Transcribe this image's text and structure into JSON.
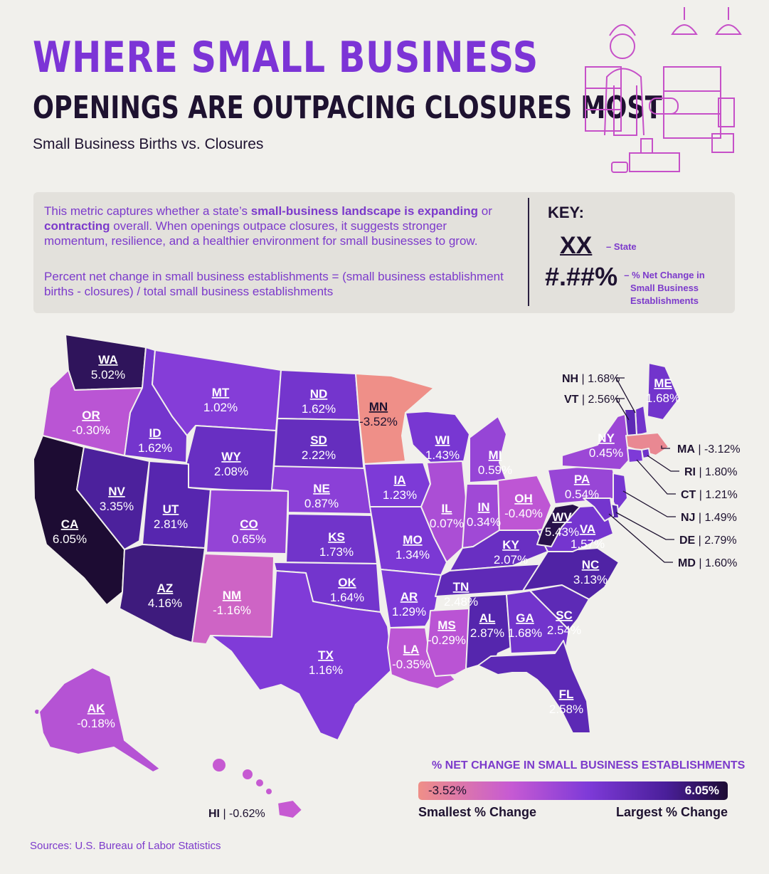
{
  "header": {
    "title_line1": "WHERE SMALL BUSINESS",
    "title_line2": "OPENINGS ARE OUTPACING CLOSURES MOST",
    "subtitle": "Small Business Births vs. Closures"
  },
  "info": {
    "desc_pre": "This metric captures whether a state’s ",
    "desc_bold1": "small-business landscape is expanding",
    "desc_mid": " or ",
    "desc_bold2": "contracting",
    "desc_post": " overall. When openings outpace closures, it suggests stronger momentum, resilience, and a healthier environment for small businesses to grow.",
    "formula": "Percent net change in small business establishments = (small business establishment births - closures) / total small business establishments"
  },
  "key": {
    "title": "KEY:",
    "state_sample": "XX",
    "state_label": "– State",
    "pct_sample": "#.##%",
    "pct_label": "– % Net Change in Small Business Establishments"
  },
  "legend": {
    "title": "% NET CHANGE IN SMALL BUSINESS ESTABLISHMENTS",
    "min_value": "-3.52%",
    "max_value": "6.05%",
    "min_label": "Smallest % Change",
    "max_label": "Largest % Change"
  },
  "colors": {
    "background": "#f1f0ec",
    "accent_purple": "#7c34d6",
    "dark_text": "#1e1230",
    "min_color": "#ef8f88",
    "mid_color": "#c65ad3",
    "max_color": "#1d0c33"
  },
  "source": "Sources: U.S. Bureau of Labor Statistics",
  "states": [
    {
      "abbr": "WA",
      "value": "5.02%"
    },
    {
      "abbr": "OR",
      "value": "-0.30%"
    },
    {
      "abbr": "CA",
      "value": "6.05%"
    },
    {
      "abbr": "ID",
      "value": "1.62%"
    },
    {
      "abbr": "NV",
      "value": "3.35%"
    },
    {
      "abbr": "MT",
      "value": "1.02%"
    },
    {
      "abbr": "WY",
      "value": "2.08%"
    },
    {
      "abbr": "UT",
      "value": "2.81%"
    },
    {
      "abbr": "AZ",
      "value": "4.16%"
    },
    {
      "abbr": "CO",
      "value": "0.65%"
    },
    {
      "abbr": "NM",
      "value": "-1.16%"
    },
    {
      "abbr": "ND",
      "value": "1.62%"
    },
    {
      "abbr": "SD",
      "value": "2.22%"
    },
    {
      "abbr": "NE",
      "value": "0.87%"
    },
    {
      "abbr": "KS",
      "value": "1.73%"
    },
    {
      "abbr": "OK",
      "value": "1.64%"
    },
    {
      "abbr": "TX",
      "value": "1.16%"
    },
    {
      "abbr": "MN",
      "value": "-3.52%"
    },
    {
      "abbr": "IA",
      "value": "1.23%"
    },
    {
      "abbr": "MO",
      "value": "1.34%"
    },
    {
      "abbr": "AR",
      "value": "1.29%"
    },
    {
      "abbr": "LA",
      "value": "-0.35%"
    },
    {
      "abbr": "WI",
      "value": "1.43%"
    },
    {
      "abbr": "IL",
      "value": "0.07%"
    },
    {
      "abbr": "MS",
      "value": "-0.29%"
    },
    {
      "abbr": "MI",
      "value": "0.59%"
    },
    {
      "abbr": "IN",
      "value": "0.34%"
    },
    {
      "abbr": "KY",
      "value": "2.07%"
    },
    {
      "abbr": "TN",
      "value": "2.48%"
    },
    {
      "abbr": "AL",
      "value": "2.87%"
    },
    {
      "abbr": "OH",
      "value": "-0.40%"
    },
    {
      "abbr": "GA",
      "value": "1.68%"
    },
    {
      "abbr": "FL",
      "value": "2.58%"
    },
    {
      "abbr": "SC",
      "value": "2.54%"
    },
    {
      "abbr": "NC",
      "value": "3.13%"
    },
    {
      "abbr": "VA",
      "value": "1.57%"
    },
    {
      "abbr": "WV",
      "value": "5.43%"
    },
    {
      "abbr": "PA",
      "value": "0.54%"
    },
    {
      "abbr": "NY",
      "value": "0.45%"
    },
    {
      "abbr": "ME",
      "value": "1.68%"
    },
    {
      "abbr": "AK",
      "value": "-0.18%"
    }
  ],
  "callouts": [
    {
      "abbr": "NH",
      "sep": " | ",
      "value": "1.68%"
    },
    {
      "abbr": "VT",
      "sep": " | ",
      "value": "2.56%"
    },
    {
      "abbr": "MA",
      "sep": " | ",
      "value": "-3.12%"
    },
    {
      "abbr": "RI",
      "sep": " | ",
      "value": "1.80%"
    },
    {
      "abbr": "CT",
      "sep": " | ",
      "value": "1.21%"
    },
    {
      "abbr": "NJ",
      "sep": " | ",
      "value": "1.49%"
    },
    {
      "abbr": "DE",
      "sep": " | ",
      "value": "2.79%"
    },
    {
      "abbr": "MD",
      "sep": " | ",
      "value": "1.60%"
    },
    {
      "abbr": "HI",
      "sep": " | ",
      "value": "-0.62%"
    }
  ]
}
